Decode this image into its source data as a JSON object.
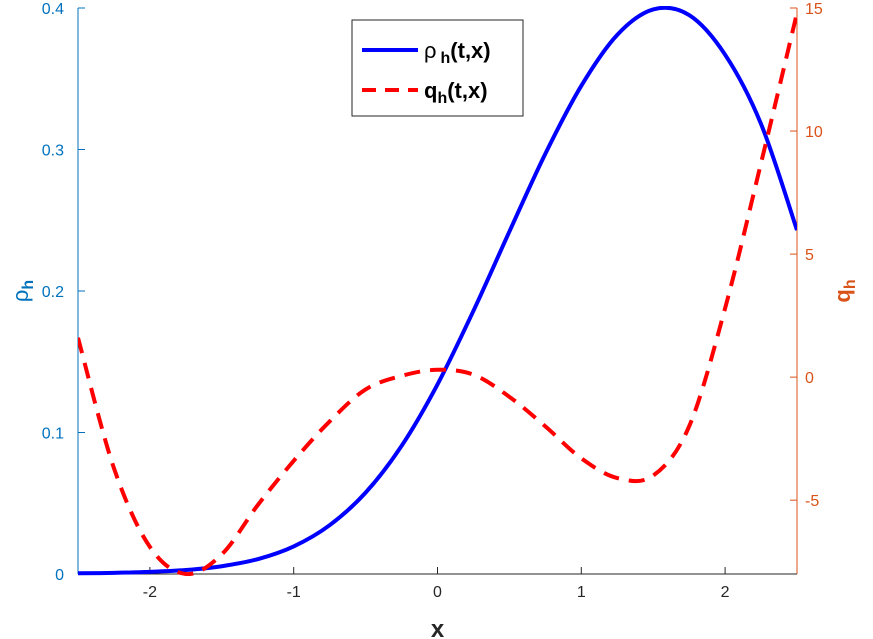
{
  "chart_data": {
    "type": "line",
    "title": "",
    "xlabel": "x",
    "ylabel_left": "ρ",
    "ylabel_left_sub": "h",
    "ylabel_right": "q",
    "ylabel_right_sub": "h",
    "xlim": [
      -2.5,
      2.5
    ],
    "ylim_left": [
      0,
      0.4
    ],
    "ylim_right": [
      -8,
      15
    ],
    "x_ticks": [
      "-2",
      "-1",
      "0",
      "1",
      "2"
    ],
    "x_tick_values": [
      -2,
      -1,
      0,
      1,
      2
    ],
    "y_left_ticks": [
      "0",
      "0.1",
      "0.2",
      "0.3",
      "0.4"
    ],
    "y_left_tick_values": [
      0,
      0.1,
      0.2,
      0.3,
      0.4
    ],
    "y_right_ticks": [
      "-5",
      "0",
      "5",
      "10",
      "15"
    ],
    "y_right_tick_values": [
      -5,
      0,
      5,
      10,
      15
    ],
    "grid": false,
    "legend_position": "top-center",
    "colors": {
      "left_axis": "#0072bd",
      "right_axis": "#d95319",
      "rho": "#0000ff",
      "q": "#ff0000"
    },
    "series": [
      {
        "name": "ρ h(t,x)",
        "legend_main": "ρ",
        "legend_sub": "h",
        "legend_rest": "(t,x)",
        "axis": "left",
        "style": "solid",
        "x": [
          -2.5,
          -2.25,
          -2.0,
          -1.75,
          -1.5,
          -1.25,
          -1.0,
          -0.75,
          -0.5,
          -0.25,
          0.0,
          0.25,
          0.5,
          0.75,
          1.0,
          1.25,
          1.5,
          1.75,
          2.0,
          2.25,
          2.5
        ],
        "y": [
          0.0005,
          0.0008,
          0.0015,
          0.0028,
          0.0055,
          0.0105,
          0.0195,
          0.0345,
          0.0575,
          0.0905,
          0.134,
          0.186,
          0.242,
          0.297,
          0.345,
          0.381,
          0.399,
          0.395,
          0.367,
          0.318,
          0.243
        ]
      },
      {
        "name": "q h(t,x)",
        "legend_main": "q",
        "legend_sub": "h",
        "legend_rest": "(t,x)",
        "axis": "right",
        "style": "dashed",
        "x": [
          -2.5,
          -2.25,
          -2.0,
          -1.75,
          -1.5,
          -1.25,
          -1.0,
          -0.75,
          -0.5,
          -0.25,
          0.0,
          0.25,
          0.5,
          0.75,
          1.0,
          1.25,
          1.5,
          1.75,
          2.0,
          2.25,
          2.5
        ],
        "y": [
          1.6,
          -3.7,
          -6.9,
          -8.0,
          -7.2,
          -5.2,
          -3.4,
          -1.8,
          -0.5,
          0.05,
          0.3,
          0.1,
          -0.8,
          -2.0,
          -3.3,
          -4.1,
          -4.0,
          -2.0,
          2.8,
          8.7,
          14.8
        ]
      }
    ]
  }
}
